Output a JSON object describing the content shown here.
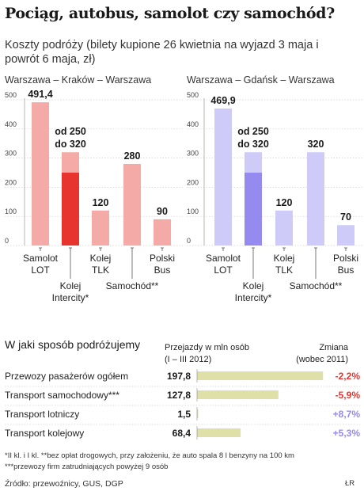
{
  "title": "Pociąg, autobus, samolot czy samochód?",
  "subtitle": "Koszty podróży (bilety kupione 26 kwietnia na wyjazd 3 maja i powrót 6 maja, zł)",
  "chart_data": [
    {
      "type": "bar",
      "title": "Warszawa – Kraków – Warszawa",
      "ylim": [
        0,
        500
      ],
      "yticks": [
        "0",
        "100",
        "200",
        "300",
        "400",
        "500"
      ],
      "color_light": "#f4aaa6",
      "color_dark": "#e8342e",
      "categories": [
        {
          "label": [
            "Samolot",
            "LOT"
          ],
          "value": 491.4,
          "value_label": [
            "491,4"
          ]
        },
        {
          "label": [
            "Kolej",
            "Intercity*"
          ],
          "value": 320,
          "value_low": 250,
          "value_label": [
            "od 250",
            "do 320"
          ]
        },
        {
          "label": [
            "Kolej",
            "TLK"
          ],
          "value": 120,
          "value_label": [
            "120"
          ]
        },
        {
          "label": [
            "Samochód**"
          ],
          "value": 280,
          "value_label": [
            "280"
          ]
        },
        {
          "label": [
            "Polski",
            "Bus"
          ],
          "value": 90,
          "value_label": [
            "90"
          ]
        }
      ]
    },
    {
      "type": "bar",
      "title": "Warszawa – Gdańsk – Warszawa",
      "ylim": [
        0,
        500
      ],
      "yticks": [
        "0",
        "100",
        "200",
        "300",
        "400",
        "500"
      ],
      "color_light": "#cfcbf8",
      "color_dark": "#948af0",
      "categories": [
        {
          "label": [
            "Samolot",
            "LOT"
          ],
          "value": 469.9,
          "value_label": [
            "469,9"
          ]
        },
        {
          "label": [
            "Kolej",
            "Intercity*"
          ],
          "value": 320,
          "value_low": 250,
          "value_label": [
            "od 250",
            "do 320"
          ]
        },
        {
          "label": [
            "Kolej",
            "TLK"
          ],
          "value": 120,
          "value_label": [
            "120"
          ]
        },
        {
          "label": [
            "Samochód**"
          ],
          "value": 320,
          "value_label": [
            "320"
          ]
        },
        {
          "label": [
            "Polski",
            "Bus"
          ],
          "value": 70,
          "value_label": [
            "70"
          ]
        }
      ]
    },
    {
      "type": "bar",
      "orientation": "horizontal",
      "title": "W jaki sposób podróżujemy",
      "column_headers": {
        "trips": [
          "Przejazdy w mln osób",
          "(I – III 2012)"
        ],
        "change": [
          "Zmiana",
          "(wobec 2011)"
        ]
      },
      "bar_color": "#dfe0a8",
      "rows": [
        {
          "label": "Przewozy pasażerów ogółem",
          "value": 197.8,
          "value_label": "197,8",
          "change_label": "-2,2%",
          "change_color": "#e8342e"
        },
        {
          "label": "Transport samochodowy***",
          "value": 127.8,
          "value_label": "127,8",
          "change_label": "-5,9%",
          "change_color": "#e8342e"
        },
        {
          "label": "Transport lotniczy",
          "value": 1.5,
          "value_label": "1,5",
          "change_label": "+8,7%",
          "change_color": "#948af0"
        },
        {
          "label": "Transport kolejowy",
          "value": 68.4,
          "value_label": "68,4",
          "change_label": "+5,3%",
          "change_color": "#948af0"
        }
      ]
    }
  ],
  "footnotes": [
    "*II kl. i I kl.    **bez opłat drogowych, przy założeniu, że auto spala 8 l benzyny na 100 km",
    "***przewozy firm zatrudniających powyżej 9 osób"
  ],
  "source": "Źródło: przewoźnicy, GUS, DGP",
  "credit": "ŁR"
}
